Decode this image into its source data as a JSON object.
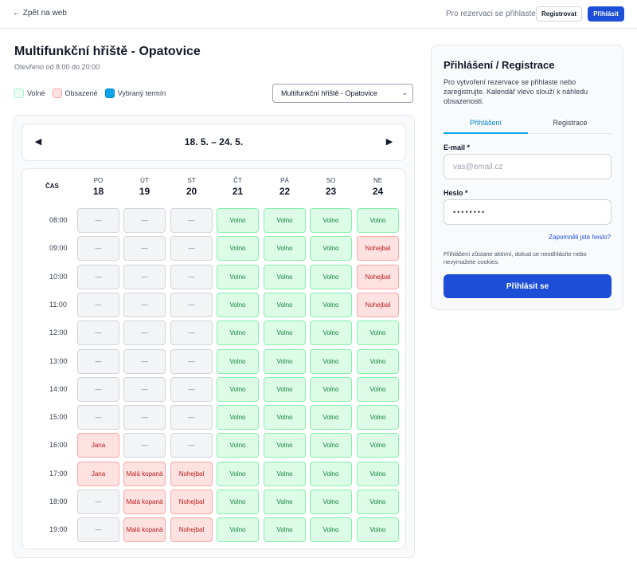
{
  "header": {
    "back_label": "← Zpět na web",
    "note": "Pro rezervaci se přihlaste",
    "register_label": "Registrovat",
    "login_label": "Přihlásit"
  },
  "page": {
    "title": "Multifunkční hřiště - Opatovice",
    "subtitle": "Otevřeno od 8:00 do 20:00"
  },
  "legend": {
    "free": "Volné",
    "busy": "Obsazené",
    "selected": "Vybraný termín"
  },
  "facility_select": {
    "value": "Multifunkční hřiště - Opatovice"
  },
  "calendar": {
    "week_label": "18. 5. – 24. 5.",
    "prev_icon": "◀",
    "next_icon": "▶",
    "time_header": "ČAS",
    "days": [
      {
        "name": "PO",
        "date": "18"
      },
      {
        "name": "ÚT",
        "date": "19"
      },
      {
        "name": "ST",
        "date": "20"
      },
      {
        "name": "ČT",
        "date": "21"
      },
      {
        "name": "PÁ",
        "date": "22"
      },
      {
        "name": "SO",
        "date": "23"
      },
      {
        "name": "NE",
        "date": "24"
      }
    ],
    "rows": [
      {
        "time": "08:00",
        "slots": [
          {
            "status": "past",
            "label": "—"
          },
          {
            "status": "past",
            "label": "—"
          },
          {
            "status": "past",
            "label": "—"
          },
          {
            "status": "free",
            "label": "Volno"
          },
          {
            "status": "free",
            "label": "Volno"
          },
          {
            "status": "free",
            "label": "Volno"
          },
          {
            "status": "free",
            "label": "Volno"
          }
        ]
      },
      {
        "time": "09:00",
        "slots": [
          {
            "status": "past",
            "label": "—"
          },
          {
            "status": "past",
            "label": "—"
          },
          {
            "status": "past",
            "label": "—"
          },
          {
            "status": "free",
            "label": "Volno"
          },
          {
            "status": "free",
            "label": "Volno"
          },
          {
            "status": "free",
            "label": "Volno"
          },
          {
            "status": "busy",
            "label": "Nohejbal"
          }
        ]
      },
      {
        "time": "10:00",
        "slots": [
          {
            "status": "past",
            "label": "—"
          },
          {
            "status": "past",
            "label": "—"
          },
          {
            "status": "past",
            "label": "—"
          },
          {
            "status": "free",
            "label": "Volno"
          },
          {
            "status": "free",
            "label": "Volno"
          },
          {
            "status": "free",
            "label": "Volno"
          },
          {
            "status": "busy",
            "label": "Nohejbal"
          }
        ]
      },
      {
        "time": "11:00",
        "slots": [
          {
            "status": "past",
            "label": "—"
          },
          {
            "status": "past",
            "label": "—"
          },
          {
            "status": "past",
            "label": "—"
          },
          {
            "status": "free",
            "label": "Volno"
          },
          {
            "status": "free",
            "label": "Volno"
          },
          {
            "status": "free",
            "label": "Volno"
          },
          {
            "status": "busy",
            "label": "Nohejbal"
          }
        ]
      },
      {
        "time": "12:00",
        "slots": [
          {
            "status": "past",
            "label": "—"
          },
          {
            "status": "past",
            "label": "—"
          },
          {
            "status": "past",
            "label": "—"
          },
          {
            "status": "free",
            "label": "Volno"
          },
          {
            "status": "free",
            "label": "Volno"
          },
          {
            "status": "free",
            "label": "Volno"
          },
          {
            "status": "free",
            "label": "Volno"
          }
        ]
      },
      {
        "time": "13:00",
        "slots": [
          {
            "status": "past",
            "label": "—"
          },
          {
            "status": "past",
            "label": "—"
          },
          {
            "status": "past",
            "label": "—"
          },
          {
            "status": "free",
            "label": "Volno"
          },
          {
            "status": "free",
            "label": "Volno"
          },
          {
            "status": "free",
            "label": "Volno"
          },
          {
            "status": "free",
            "label": "Volno"
          }
        ]
      },
      {
        "time": "14:00",
        "slots": [
          {
            "status": "past",
            "label": "—"
          },
          {
            "status": "past",
            "label": "—"
          },
          {
            "status": "past",
            "label": "—"
          },
          {
            "status": "free",
            "label": "Volno"
          },
          {
            "status": "free",
            "label": "Volno"
          },
          {
            "status": "free",
            "label": "Volno"
          },
          {
            "status": "free",
            "label": "Volno"
          }
        ]
      },
      {
        "time": "15:00",
        "slots": [
          {
            "status": "past",
            "label": "—"
          },
          {
            "status": "past",
            "label": "—"
          },
          {
            "status": "past",
            "label": "—"
          },
          {
            "status": "free",
            "label": "Volno"
          },
          {
            "status": "free",
            "label": "Volno"
          },
          {
            "status": "free",
            "label": "Volno"
          },
          {
            "status": "free",
            "label": "Volno"
          }
        ]
      },
      {
        "time": "16:00",
        "slots": [
          {
            "status": "busy",
            "label": "Jana"
          },
          {
            "status": "past",
            "label": "—"
          },
          {
            "status": "past",
            "label": "—"
          },
          {
            "status": "free",
            "label": "Volno"
          },
          {
            "status": "free",
            "label": "Volno"
          },
          {
            "status": "free",
            "label": "Volno"
          },
          {
            "status": "free",
            "label": "Volno"
          }
        ]
      },
      {
        "time": "17:00",
        "slots": [
          {
            "status": "busy",
            "label": "Jana"
          },
          {
            "status": "busy",
            "label": "Malá kopaná"
          },
          {
            "status": "busy",
            "label": "Nohejbal"
          },
          {
            "status": "free",
            "label": "Volno"
          },
          {
            "status": "free",
            "label": "Volno"
          },
          {
            "status": "free",
            "label": "Volno"
          },
          {
            "status": "free",
            "label": "Volno"
          }
        ]
      },
      {
        "time": "18:00",
        "slots": [
          {
            "status": "past",
            "label": "—"
          },
          {
            "status": "busy",
            "label": "Malá kopaná"
          },
          {
            "status": "busy",
            "label": "Nohejbal"
          },
          {
            "status": "free",
            "label": "Volno"
          },
          {
            "status": "free",
            "label": "Volno"
          },
          {
            "status": "free",
            "label": "Volno"
          },
          {
            "status": "free",
            "label": "Volno"
          }
        ]
      },
      {
        "time": "19:00",
        "slots": [
          {
            "status": "past",
            "label": "—"
          },
          {
            "status": "busy",
            "label": "Malá kopaná"
          },
          {
            "status": "busy",
            "label": "Nohejbal"
          },
          {
            "status": "free",
            "label": "Volno"
          },
          {
            "status": "free",
            "label": "Volno"
          },
          {
            "status": "free",
            "label": "Volno"
          },
          {
            "status": "free",
            "label": "Volno"
          }
        ]
      }
    ]
  },
  "login": {
    "title": "Přihlášení / Registrace",
    "description": "Pro vytvoření rezervace se přihlaste nebo zaregistrujte. Kalendář vlevo slouží k náhledu obsazenosti.",
    "tab_login": "Přihlášení",
    "tab_register": "Registrace",
    "email_label": "E-mail *",
    "email_placeholder": "vas@email.cz",
    "password_label": "Heslo *",
    "password_value": "••••••••",
    "forgot_label": "Zapomněli jste heslo?",
    "note": "Přihlášení zůstane aktivní, dokud se neodhlásíte nebo nevymažete cookies.",
    "submit_label": "Přihlásit se"
  },
  "colors": {
    "primary": "#1d4ed8",
    "accent": "#0ea5e9",
    "free_bg": "#dcfce7",
    "busy_bg": "#fee2e2",
    "past_bg": "#f3f4f6"
  }
}
